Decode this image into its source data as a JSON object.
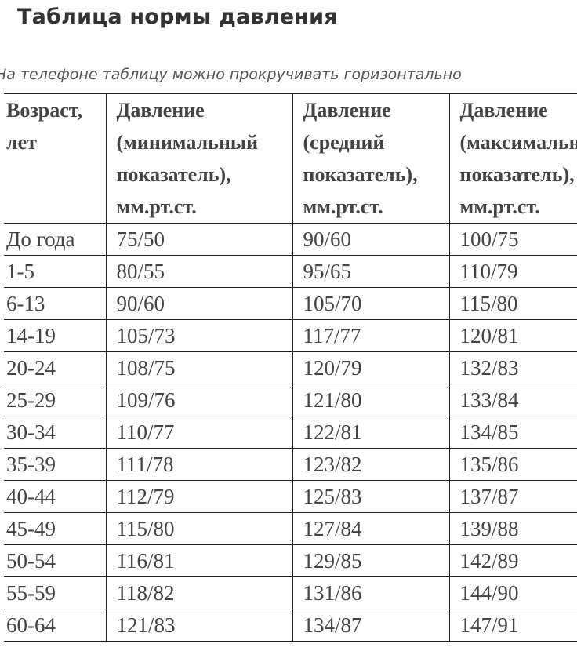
{
  "page": {
    "title": "Таблица нормы давления",
    "note": "На телефоне таблицу можно прокручивать горизонтально"
  },
  "table": {
    "headers": [
      [
        "Возраст,",
        "лет"
      ],
      [
        "Давление",
        "(минимальный",
        "показатель),",
        "мм.рт.ст."
      ],
      [
        "Давление",
        "(средний",
        "показатель),",
        "мм.рт.ст."
      ],
      [
        "Давление",
        "(максимальный",
        "показатель),",
        "мм.рт.ст."
      ]
    ],
    "rows": [
      [
        "До года",
        "75/50",
        "90/60",
        "100/75"
      ],
      [
        "1-5",
        "80/55",
        "95/65",
        "110/79"
      ],
      [
        "6-13",
        "90/60",
        "105/70",
        "115/80"
      ],
      [
        "14-19",
        "105/73",
        "117/77",
        "120/81"
      ],
      [
        "20-24",
        "108/75",
        "120/79",
        "132/83"
      ],
      [
        "25-29",
        "109/76",
        "121/80",
        "133/84"
      ],
      [
        "30-34",
        "110/77",
        "122/81",
        "134/85"
      ],
      [
        "35-39",
        "111/78",
        "123/82",
        "135/86"
      ],
      [
        "40-44",
        "112/79",
        "125/83",
        "137/87"
      ],
      [
        "45-49",
        "115/80",
        "127/84",
        "139/88"
      ],
      [
        "50-54",
        "116/81",
        "129/85",
        "142/89"
      ],
      [
        "55-59",
        "118/82",
        "131/86",
        "144/90"
      ],
      [
        "60-64",
        "121/83",
        "134/87",
        "147/91"
      ]
    ]
  }
}
